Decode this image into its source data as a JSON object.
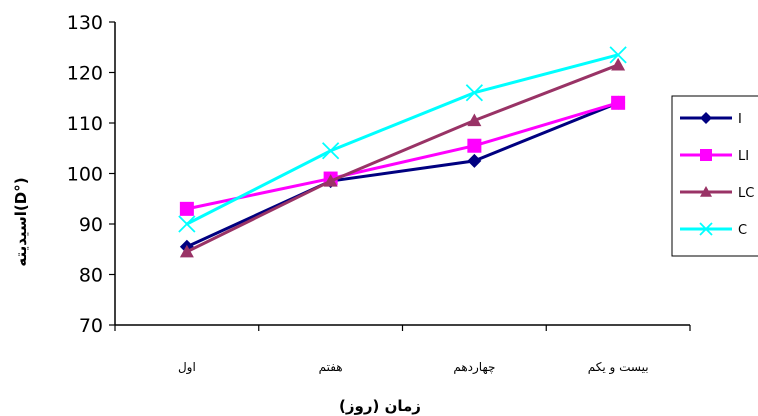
{
  "chart_data": {
    "type": "line",
    "title": "",
    "xlabel": "زمان (روز)",
    "ylabel": "اسیدیته(D°)",
    "categories": [
      "اول",
      "هفتم",
      "چهاردهم",
      "بیست و یکم"
    ],
    "ylim": [
      70,
      130
    ],
    "yticks": [
      70,
      80,
      90,
      100,
      110,
      120,
      130
    ],
    "grid": false,
    "legend_position": "right",
    "series": [
      {
        "name": "I",
        "color": "#000080",
        "marker": "diamond",
        "values": [
          85.5,
          98.5,
          102.5,
          114
        ]
      },
      {
        "name": "LI",
        "color": "#FF00FF",
        "marker": "square",
        "values": [
          93,
          99,
          105.5,
          114
        ]
      },
      {
        "name": "LC",
        "color": "#993366",
        "marker": "triangle",
        "values": [
          84.5,
          98.5,
          110.5,
          121.5
        ]
      },
      {
        "name": "C",
        "color": "#00FFFF",
        "marker": "x",
        "values": [
          90,
          104.5,
          116,
          123.5
        ]
      }
    ]
  }
}
